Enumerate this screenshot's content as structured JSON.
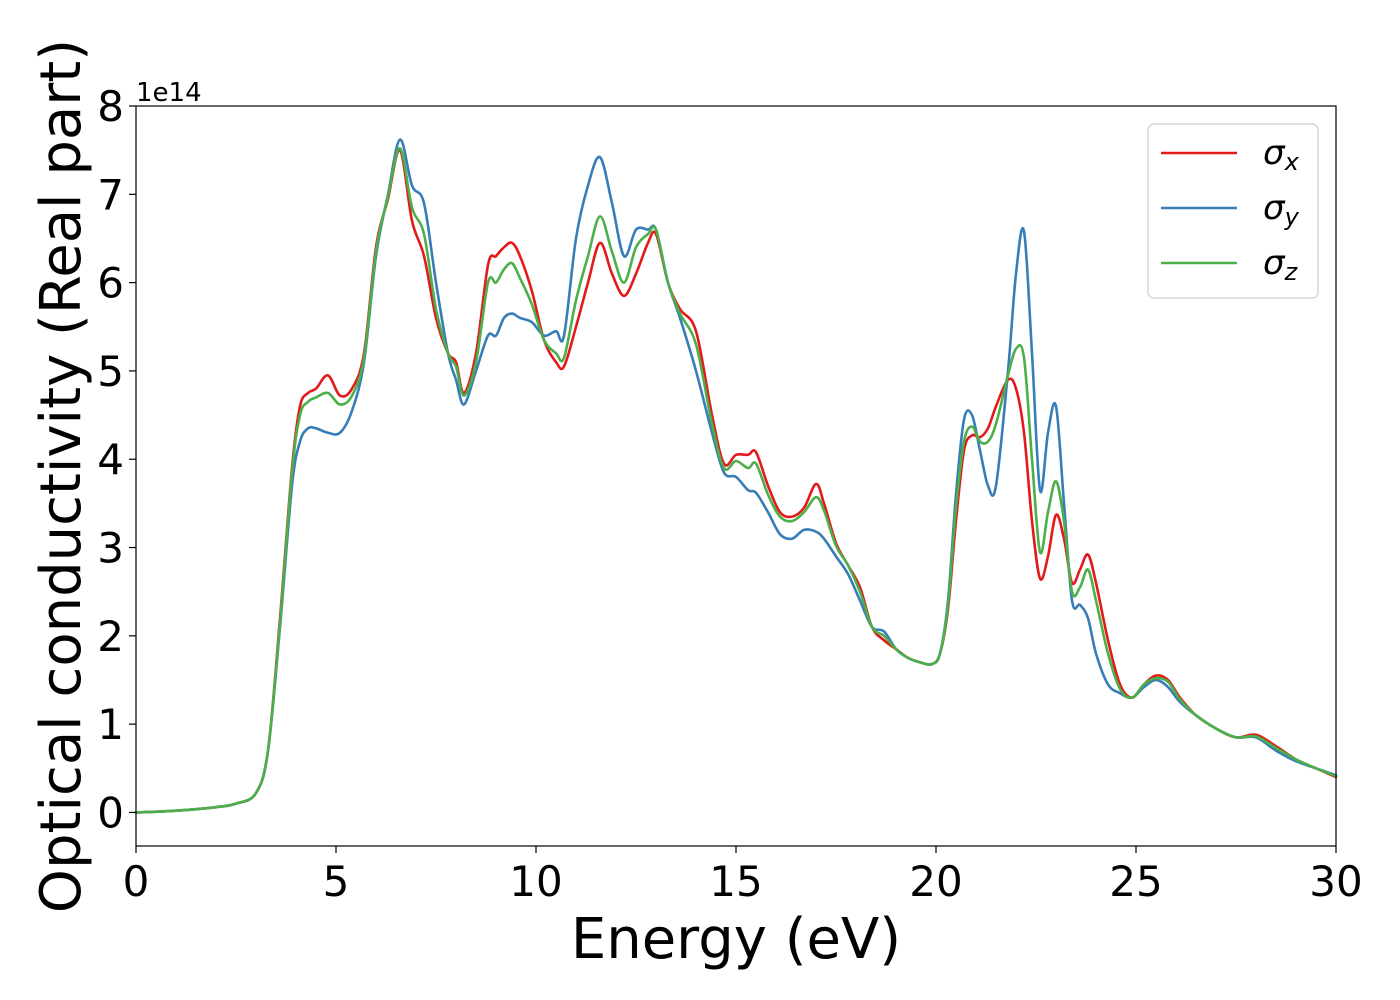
{
  "chart_data": {
    "type": "line",
    "xlabel": "Energy (eV)",
    "ylabel": "Optical conductivity (Real part)",
    "y_offset_label": "1e14",
    "xlim": [
      0,
      30
    ],
    "ylim": [
      -0.38,
      8.0
    ],
    "x_ticks": [
      0,
      5,
      10,
      15,
      20,
      25,
      30
    ],
    "y_ticks": [
      0,
      1,
      2,
      3,
      4,
      5,
      6,
      7,
      8
    ],
    "y_unit_multiplier": 100000000000000.0,
    "grid": false,
    "legend_position": "top-right",
    "series": [
      {
        "name": "σx",
        "legend_symbol": "σ",
        "legend_subscript": "x",
        "color": "#e31a1c",
        "x": [
          0,
          1,
          2,
          2.5,
          3,
          3.3,
          3.6,
          3.9,
          4.1,
          4.3,
          4.5,
          4.8,
          5.1,
          5.4,
          5.7,
          6.0,
          6.3,
          6.6,
          6.9,
          7.2,
          7.5,
          7.8,
          8.0,
          8.2,
          8.5,
          8.8,
          9.0,
          9.2,
          9.4,
          9.6,
          9.9,
          10.2,
          10.5,
          10.7,
          11.0,
          11.3,
          11.6,
          11.9,
          12.2,
          12.5,
          12.8,
          13.0,
          13.3,
          13.6,
          14.0,
          14.4,
          14.7,
          15.0,
          15.3,
          15.5,
          15.8,
          16.1,
          16.4,
          16.7,
          17.0,
          17.2,
          17.5,
          17.8,
          18.1,
          18.4,
          18.7,
          19.0,
          19.3,
          19.6,
          19.9,
          20.1,
          20.3,
          20.5,
          20.7,
          20.9,
          21.1,
          21.3,
          21.5,
          21.8,
          22.0,
          22.2,
          22.4,
          22.6,
          22.8,
          23.0,
          23.2,
          23.4,
          23.6,
          23.8,
          24.0,
          24.3,
          24.6,
          24.9,
          25.2,
          25.5,
          25.8,
          26.1,
          26.5,
          27.0,
          27.5,
          28.0,
          28.5,
          29.0,
          29.5,
          30.0
        ],
        "y": [
          0,
          0.02,
          0.06,
          0.1,
          0.22,
          0.7,
          2.2,
          3.9,
          4.6,
          4.75,
          4.8,
          4.95,
          4.72,
          4.8,
          5.2,
          6.4,
          6.95,
          7.5,
          6.7,
          6.3,
          5.6,
          5.2,
          5.1,
          4.75,
          5.2,
          6.2,
          6.3,
          6.4,
          6.45,
          6.3,
          5.9,
          5.35,
          5.1,
          5.05,
          5.5,
          6.0,
          6.45,
          6.1,
          5.85,
          6.1,
          6.45,
          6.55,
          6.0,
          5.7,
          5.45,
          4.5,
          3.95,
          4.05,
          4.05,
          4.08,
          3.7,
          3.4,
          3.35,
          3.45,
          3.72,
          3.5,
          3.05,
          2.8,
          2.55,
          2.1,
          1.95,
          1.85,
          1.75,
          1.7,
          1.68,
          1.8,
          2.3,
          3.3,
          4.1,
          4.27,
          4.25,
          4.35,
          4.6,
          4.9,
          4.8,
          4.3,
          3.3,
          2.65,
          2.9,
          3.37,
          3.1,
          2.6,
          2.75,
          2.92,
          2.6,
          1.95,
          1.45,
          1.3,
          1.45,
          1.55,
          1.5,
          1.3,
          1.1,
          0.95,
          0.85,
          0.88,
          0.75,
          0.6,
          0.5,
          0.4
        ]
      },
      {
        "name": "σy",
        "legend_symbol": "σ",
        "legend_subscript": "y",
        "color": "#377eb8",
        "x": [
          0,
          1,
          2,
          2.5,
          3,
          3.3,
          3.6,
          3.9,
          4.1,
          4.3,
          4.5,
          4.8,
          5.1,
          5.4,
          5.7,
          6.0,
          6.3,
          6.6,
          6.9,
          7.2,
          7.5,
          7.8,
          8.0,
          8.2,
          8.5,
          8.8,
          9.0,
          9.2,
          9.4,
          9.6,
          9.9,
          10.2,
          10.5,
          10.7,
          11.0,
          11.3,
          11.6,
          11.9,
          12.2,
          12.5,
          12.8,
          13.0,
          13.3,
          13.6,
          14.0,
          14.4,
          14.7,
          15.0,
          15.3,
          15.5,
          15.8,
          16.1,
          16.4,
          16.7,
          17.0,
          17.2,
          17.5,
          17.8,
          18.1,
          18.4,
          18.7,
          19.0,
          19.3,
          19.6,
          19.9,
          20.1,
          20.3,
          20.5,
          20.7,
          20.9,
          21.1,
          21.3,
          21.5,
          21.8,
          22.0,
          22.2,
          22.4,
          22.6,
          22.8,
          23.0,
          23.2,
          23.4,
          23.6,
          23.8,
          24.0,
          24.3,
          24.6,
          24.9,
          25.2,
          25.5,
          25.8,
          26.1,
          26.5,
          27.0,
          27.5,
          28.0,
          28.5,
          29.0,
          29.5,
          30.0
        ],
        "y": [
          0,
          0.02,
          0.06,
          0.1,
          0.22,
          0.7,
          2.1,
          3.7,
          4.2,
          4.35,
          4.35,
          4.3,
          4.3,
          4.55,
          5.1,
          6.3,
          7.0,
          7.62,
          7.1,
          6.9,
          6.0,
          5.2,
          4.9,
          4.62,
          5.0,
          5.4,
          5.4,
          5.6,
          5.65,
          5.6,
          5.55,
          5.4,
          5.45,
          5.4,
          6.5,
          7.1,
          7.42,
          6.9,
          6.3,
          6.6,
          6.6,
          6.6,
          6.0,
          5.6,
          5.0,
          4.3,
          3.85,
          3.8,
          3.65,
          3.62,
          3.4,
          3.15,
          3.1,
          3.2,
          3.18,
          3.1,
          2.9,
          2.7,
          2.4,
          2.1,
          2.05,
          1.85,
          1.75,
          1.7,
          1.68,
          1.8,
          2.4,
          3.6,
          4.45,
          4.5,
          4.1,
          3.7,
          3.7,
          5.0,
          6.1,
          6.58,
          5.2,
          3.65,
          4.3,
          4.6,
          3.5,
          2.4,
          2.35,
          2.2,
          1.8,
          1.45,
          1.35,
          1.3,
          1.42,
          1.5,
          1.42,
          1.25,
          1.1,
          0.95,
          0.85,
          0.85,
          0.7,
          0.58,
          0.5,
          0.42
        ]
      },
      {
        "name": "σz",
        "legend_symbol": "σ",
        "legend_subscript": "z",
        "color": "#4daf4a",
        "x": [
          0,
          1,
          2,
          2.5,
          3,
          3.3,
          3.6,
          3.9,
          4.1,
          4.3,
          4.5,
          4.8,
          5.1,
          5.4,
          5.7,
          6.0,
          6.3,
          6.6,
          6.9,
          7.2,
          7.5,
          7.8,
          8.0,
          8.2,
          8.5,
          8.8,
          9.0,
          9.2,
          9.4,
          9.6,
          9.9,
          10.2,
          10.5,
          10.7,
          11.0,
          11.3,
          11.6,
          11.9,
          12.2,
          12.5,
          12.8,
          13.0,
          13.3,
          13.6,
          14.0,
          14.4,
          14.7,
          15.0,
          15.3,
          15.5,
          15.8,
          16.1,
          16.4,
          16.7,
          17.0,
          17.2,
          17.5,
          17.8,
          18.1,
          18.4,
          18.7,
          19.0,
          19.3,
          19.6,
          19.9,
          20.1,
          20.3,
          20.5,
          20.7,
          20.9,
          21.1,
          21.3,
          21.5,
          21.8,
          22.0,
          22.2,
          22.4,
          22.6,
          22.8,
          23.0,
          23.2,
          23.4,
          23.6,
          23.8,
          24.0,
          24.3,
          24.6,
          24.9,
          25.2,
          25.5,
          25.8,
          26.1,
          26.5,
          27.0,
          27.5,
          28.0,
          28.5,
          29.0,
          29.5,
          30.0
        ],
        "y": [
          0,
          0.02,
          0.06,
          0.1,
          0.22,
          0.7,
          2.15,
          3.85,
          4.5,
          4.65,
          4.7,
          4.75,
          4.62,
          4.72,
          5.15,
          6.35,
          6.98,
          7.52,
          6.85,
          6.55,
          5.7,
          5.2,
          5.05,
          4.72,
          5.1,
          6.0,
          6.0,
          6.15,
          6.22,
          6.05,
          5.75,
          5.35,
          5.2,
          5.15,
          5.8,
          6.3,
          6.75,
          6.35,
          6.0,
          6.4,
          6.55,
          6.6,
          6.0,
          5.65,
          5.3,
          4.4,
          3.9,
          3.98,
          3.9,
          3.95,
          3.6,
          3.35,
          3.3,
          3.4,
          3.57,
          3.42,
          3.02,
          2.8,
          2.5,
          2.1,
          2.0,
          1.85,
          1.75,
          1.7,
          1.68,
          1.8,
          2.35,
          3.45,
          4.2,
          4.37,
          4.2,
          4.2,
          4.4,
          4.95,
          5.25,
          5.15,
          4.0,
          2.95,
          3.4,
          3.75,
          3.3,
          2.5,
          2.55,
          2.75,
          2.4,
          1.8,
          1.4,
          1.3,
          1.45,
          1.52,
          1.48,
          1.28,
          1.1,
          0.95,
          0.85,
          0.86,
          0.73,
          0.6,
          0.5,
          0.41
        ]
      }
    ]
  }
}
